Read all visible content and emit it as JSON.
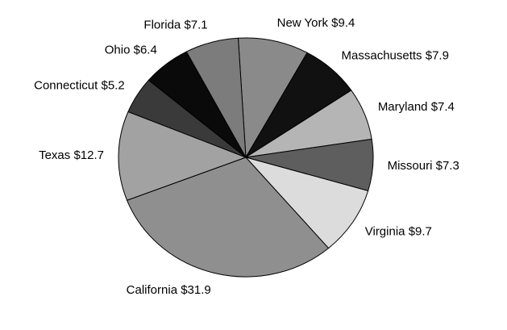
{
  "chart_data": {
    "type": "pie",
    "categories": [
      "New York",
      "Massachusetts",
      "Maryland",
      "Missouri",
      "Virginia",
      "California",
      "Texas",
      "Connecticut",
      "Ohio",
      "Florida"
    ],
    "values": [
      9.4,
      7.9,
      7.4,
      7.3,
      9.7,
      31.9,
      12.7,
      5.2,
      6.4,
      7.1
    ],
    "value_labels": [
      "$9.4",
      "$7.9",
      "$7.4",
      "$7.3",
      "$9.7",
      "$31.9",
      "$12.7",
      "$5.2",
      "$6.4",
      "$7.1"
    ],
    "colors": [
      "#8a8a8a",
      "#111111",
      "#b5b5b5",
      "#5e5e5e",
      "#dcdcdc",
      "#8f8f8f",
      "#a2a2a2",
      "#3a3a3a",
      "#0a0a0a",
      "#7c7c7c"
    ]
  }
}
